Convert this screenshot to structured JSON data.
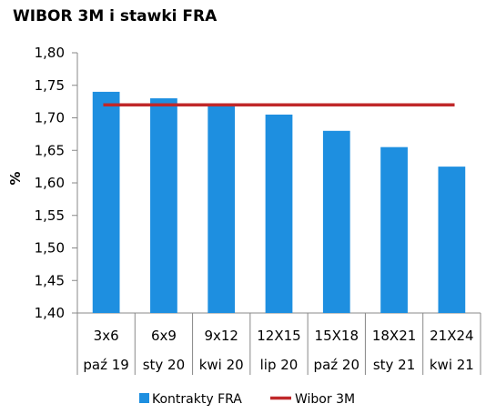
{
  "chart_data": {
    "type": "bar",
    "title": "WIBOR 3M i stawki FRA",
    "ylabel": "%",
    "ylim": [
      1.4,
      1.8
    ],
    "ytick_step": 0.05,
    "yticks": [
      "1,40",
      "1,45",
      "1,50",
      "1,55",
      "1,60",
      "1,65",
      "1,70",
      "1,75",
      "1,80"
    ],
    "categories": [
      "3x6",
      "6x9",
      "9x12",
      "12X15",
      "15X18",
      "18X21",
      "21X24"
    ],
    "sub_categories": [
      "paź 19",
      "sty 20",
      "kwi 20",
      "lip 20",
      "paź 20",
      "sty 21",
      "kwi 21"
    ],
    "series": [
      {
        "name": "Kontrakty FRA",
        "type": "bar",
        "color": "#1e8fe0",
        "values": [
          1.74,
          1.73,
          1.72,
          1.705,
          1.68,
          1.655,
          1.625
        ]
      },
      {
        "name": "Wibor 3M",
        "type": "line",
        "color": "#c0282a",
        "values": [
          1.72,
          1.72,
          1.72,
          1.72,
          1.72,
          1.72,
          1.72
        ]
      }
    ],
    "legend_position": "bottom",
    "grid": false
  }
}
